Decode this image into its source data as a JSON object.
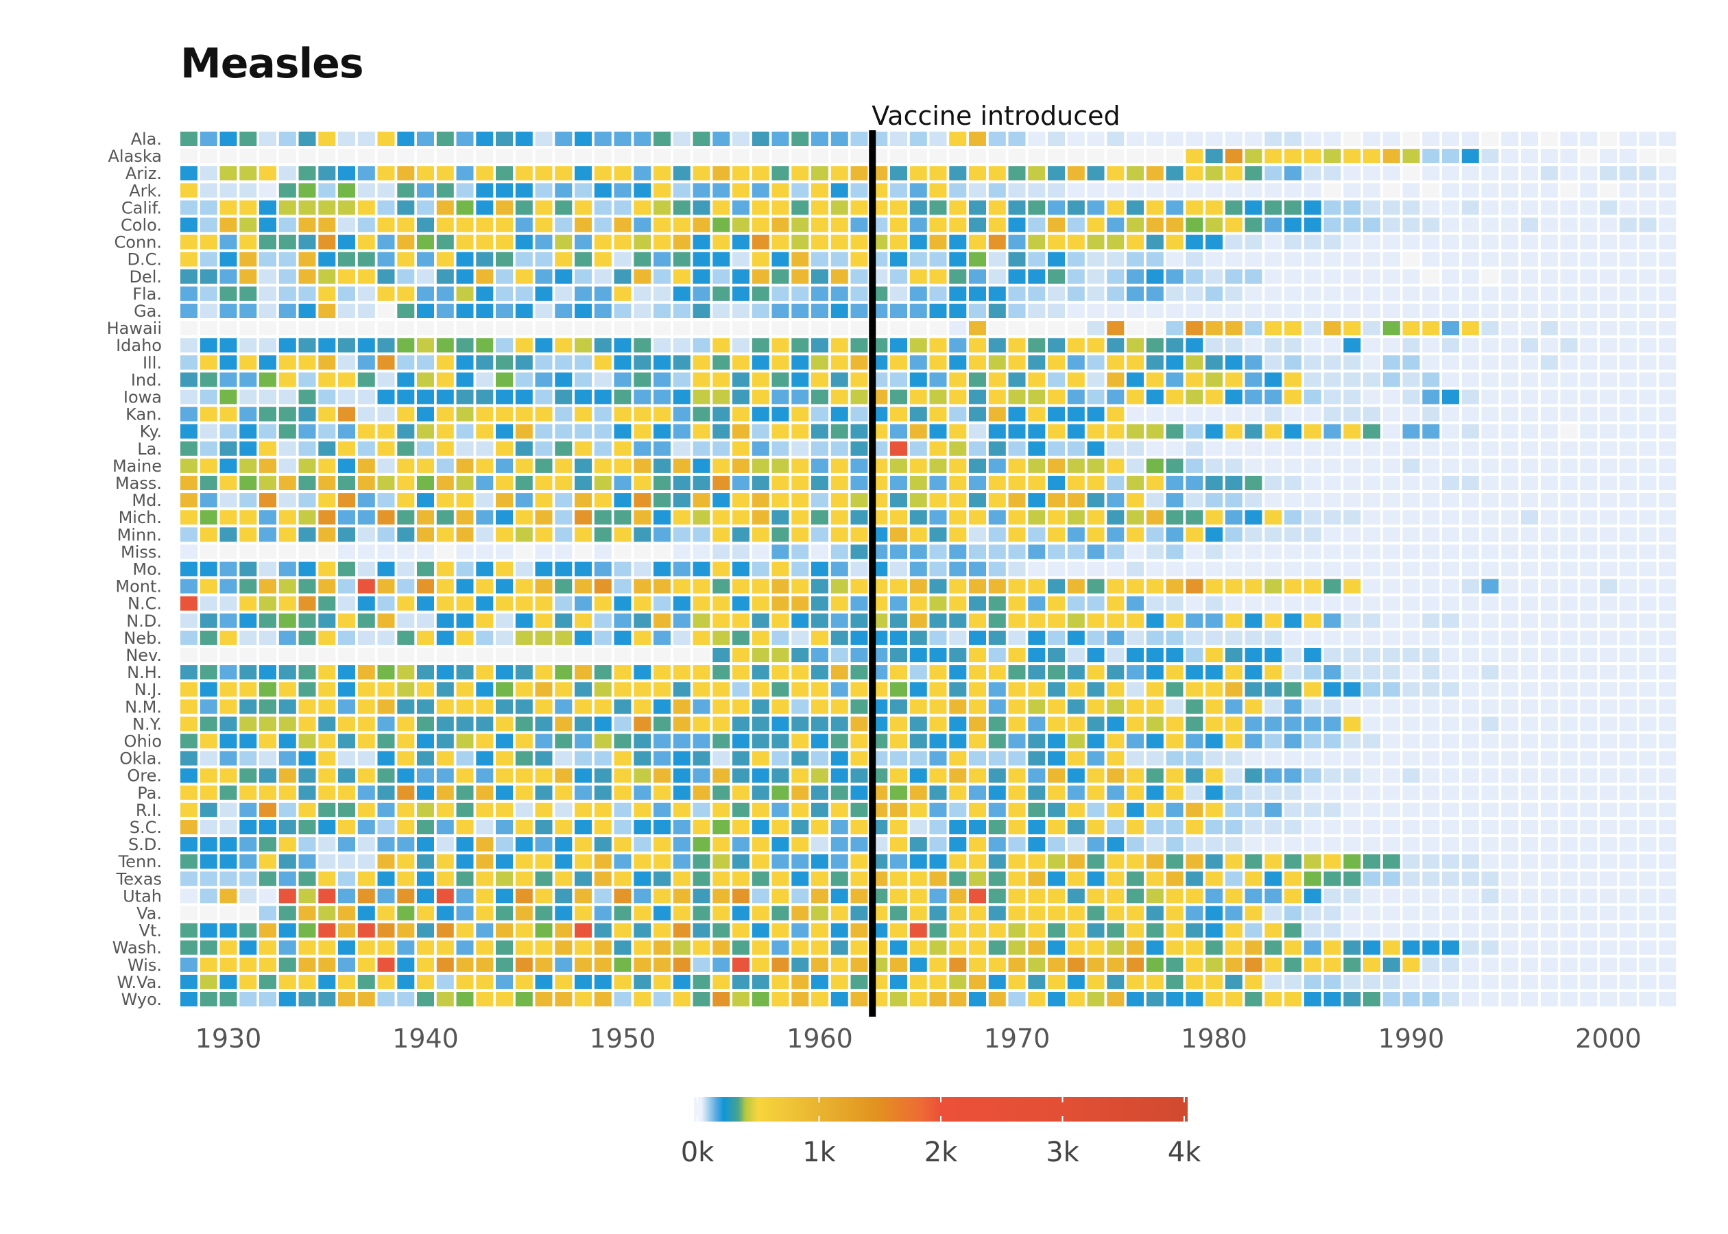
{
  "chart_data": {
    "type": "heatmap",
    "title": "Measles",
    "xlabel": "",
    "ylabel": "",
    "years": {
      "start": 1928,
      "end": 2003
    },
    "x_ticks": [
      "1930",
      "1940",
      "1950",
      "1960",
      "1970",
      "1980",
      "1990",
      "2000"
    ],
    "x_tick_values": [
      1930,
      1940,
      1950,
      1960,
      1970,
      1980,
      1990,
      2000
    ],
    "annotation": {
      "label": "Vaccine introduced",
      "year": 1963
    },
    "legend": {
      "position": "bottom-center",
      "ticks": [
        "0k",
        "1k",
        "2k",
        "3k",
        "4k"
      ],
      "tick_values": [
        0,
        1000,
        2000,
        3000,
        4000
      ],
      "range": [
        0,
        4000
      ]
    },
    "bins": {
      "0": {
        "cases": 0,
        "color": "#f5f5f5"
      },
      "1": {
        "cases": 10,
        "color": "#e4edf9"
      },
      "2": {
        "cases": 60,
        "color": "#cfe3f5"
      },
      "3": {
        "cases": 130,
        "color": "#a8d2f0"
      },
      "4": {
        "cases": 220,
        "color": "#5babe0"
      },
      "5": {
        "cases": 320,
        "color": "#2098d8"
      },
      "6": {
        "cases": 400,
        "color": "#3e9bba"
      },
      "7": {
        "cases": 480,
        "color": "#4fa48e"
      },
      "8": {
        "cases": 560,
        "color": "#73b74a"
      },
      "9": {
        "cases": 650,
        "color": "#c6cb44"
      },
      "a": {
        "cases": 850,
        "color": "#f7d23c"
      },
      "b": {
        "cases": 1150,
        "color": "#edb831"
      },
      "c": {
        "cases": 1500,
        "color": "#e3952a"
      },
      "d": {
        "cases": 2200,
        "color": "#e8553a"
      }
    },
    "states": [
      {
        "name": "Ala.",
        "row": "7457236a22a5474565245444727426474433232ab331211211111112211011011101101101"
      },
      {
        "name": "Alaska",
        "row": "000000000000000000000000000000000000000000000000000a6c9aaa9aab9335211110110000011101100000100001100110"
      },
      {
        "name": "Ariz.",
        "row": "5299a27654abaa4a7aaa5aa4a6abaa7a9abb6aa6aa796b6a9b6a9a734221110111111211222111111111111111101"
      },
      {
        "name": "Ark.",
        "row": "a22217838227473555343545a344a4a3a53a34a32322211111111111110110101111110101111"
      },
      {
        "name": "Calif.",
        "row": "33aa59999a363b85b7a7a33a976a4aa7a9aaa67a6a67464a6a4aa75775332221121111112111"
      },
      {
        "name": "Colo.",
        "row": "53b953bb23aa6aaaa4a3b3b4aab89ab9aa43a4aa6a53b3a49bb89a7455333222111121111221"
      },
      {
        "name": "Conn.",
        "row": "aa4a776c5a4b87aaa5494aa9ab5a5ca9aaa9a5b5ac49aa99a6a552212221111111111111111"
      },
      {
        "name": "D.C.",
        "row": "a35b33b5774a4a56733a7a2747552a5b33a35335826353223312111111111101111111"
      },
      {
        "name": "Del.",
        "row": "664b23b9aa63265b3a45326b3a535b7b6b323aa7425573234543233111111110110"
      },
      {
        "name": "Fla.",
        "row": "4377233a32aa4495335244a2254757334437243555332323442232111111111111111"
      },
      {
        "name": "Ga.",
        "row": "4244245b2207545545245432336223444544445536322111111111111111111111111"
      },
      {
        "name": "Hawaii",
        "row": "0000000000000000000000000000000000000001b000002c003cbb3aa2ba28aa4a2112111111111111111"
      },
      {
        "name": "Idaho",
        "row": "25522565656898783a5a9657223a27a76a7759a4a6a76aa69765221221151121211121211111"
      },
      {
        "name": "Ill.",
        "row": "3a5a5aab24c33a5676333a5656a7a5a59ab5a4a5a9a6a43aa6596542322213311111121111111"
      },
      {
        "name": "Ind.",
        "row": "67448a3aa7259a528345324743aa6a75a6a3354a7a6a3a2b5a4a9a45a2222323111111111111"
      },
      {
        "name": "Iowa",
        "row": "23822273225555665536557445996a447a9b7a9a6a99a434a5a9a544a3221124521111111111"
      },
      {
        "name": "Kan.",
        "row": "4aa4776ac22a5a9aaaa3a3aaa476a55a3535a6a36b5a555a1111111211222112111111111"
      },
      {
        "name": "Ky.",
        "row": "523537434aa69a3a5b33335a54a6b3aa676a4b5a2555a5aa99735a6a5a4a71441211110111111"
      },
      {
        "name": "La.",
        "row": "7365a236a3a73a22a637a3a44233a4323363d3a9363533522112111111111111111"
      },
      {
        "name": "Maine",
        "row": "9a59b29a5b2aa3ba4a7a6aab6b5ab99a4a4a9a9a64a9b99a2873221111111121111111"
      },
      {
        "name": "Mass.",
        "row": "b7a89b7b7b9a8b94a7aa694a766c46aa6a4a494a4aaa5aa39a44667221111111221111"
      },
      {
        "name": "Md.",
        "row": "b423c23ac43a5aa2b4a3ba5c76b5abaa3a9a69aa6ab5bb64a2423321111111111111"
      },
      {
        "name": "Mich.",
        "row": "a8aa4a9c44c7b7b45ab3c77b5a9aab6a7a6aa64aa4a9a9a69b77a45a3222111111112111111"
      },
      {
        "name": "Minn.",
        "row": "3a6a4a6b6236bab2a9a3a7a6433a6a7a3aa5ba6a23a3a4a4a34a53222211111111111111111"
      },
      {
        "name": "Miss.",
        "row": "1000000011111011101101000112214313644434333433431231211111111111111111111"
      },
      {
        "name": "Mo.",
        "row": "5546245a72527a35a2555432545a53a35425243443211111211111111111111111111"
      },
      {
        "name": "Mont.",
        "row": "4a47b97b3db3ca5a5ab7bc3bbaa7aaba69aaab6abbaa6b7aaabcaaa9aa7a11111241111121111"
      },
      {
        "name": "N.C.",
        "row": "d22a9ac7253a5aa5aaa34a5a35aa5abb6a4a4a9a67a4a33a42212111111111111111"
      },
      {
        "name": "N.D.",
        "row": "26457876a7b2255a25a6a346b49aa6a564696b66a7aaa9aaa5a44a5a5a422112211111"
      },
      {
        "name": "Neb.",
        "row": "37a2247a3227a5a32999535a42a97a32a6555632562535342332222211111111111111111"
      },
      {
        "name": "Nev.",
        "row": "0000000000000000000000000006a99643446556a3a562525553a6552522222211111111111"
      },
      {
        "name": "N.H.",
        "row": "6746567a5b89656a56a8b7a5aaa7a6aa6b74a3a5aa7676a645a55a5a23422212112111111111"
      },
      {
        "name": "N.J.",
        "row": "a5aa8a7a5aa9a6a58aba69aaa6aa3a7aa4aa85a6a4aa6a6a2a7aab667a5533222111111111111"
      },
      {
        "name": "N.M.",
        "row": "a4a676aa4ab66aaa66a4aa6a5b4aa6a3aa756aaba4a9a6a9aa27a4a2422111111111111111"
      },
      {
        "name": "N.Y.",
        "row": "a76999a6aa4a7666a76b653c7baa665666b5a6a5b7a4aa65a9a7aa44444a1111112111111111"
      },
      {
        "name": "Ohio",
        "row": "7a55a59a6a7a569a5a4749764447566a57a7a655a746595a45a45a4343322111111111111111"
      },
      {
        "name": "Okla.",
        "row": "6243245a225a6a35a76233a645626a3635a3334a33365a4a2233221111111111111111"
      },
      {
        "name": "Ore.",
        "row": "5aa76b6a6a7544a4aaab56a9b54b656a9567a5aba6a4b5aba7a6a2644322112111111111111"
      },
      {
        "name": "Pa.",
        "row": "aa7aaa6aa46c5b7b5a6a46a4a5b7a68b675b8b6a45a6a4a4a5a2532221111111111111111"
      },
      {
        "name": "R.I.",
        "row": "a624c3a77a4a9a7aa2a2aa3a4a3a7a4a6a7bba43a4a76a3a5a4ba33422211111111111111"
      },
      {
        "name": "S.C.",
        "row": "b2255675a43a74a24a6a5a3554a8a5a6a4a6a23557a5a6a3a33a3322211111111111111"
      },
      {
        "name": "S.D.",
        "row": "55547a324244525b3545a6a3a48a4a5a2442a635a4353245323222111111111111111111"
      },
      {
        "name": "Tenn.",
        "row": "7554a64222ba6a5b5aa5ab4aa4796a4454a6455aa6aa9b7aab7b6a7a79a877222211111111"
      },
      {
        "name": "Texas",
        "row": "3333747a3a5a5a7a9a7a6ba56a7aa7a5a7abaab797ab5a5a7ab6a3a5a8773322222111111111"
      },
      {
        "name": "Utah",
        "row": "13b21d9d4c4c5d4a5ca6b3c4ab6bc3a3b5b7aa4bd7aaa6aa79aa4a44a5221111112111111111"
      },
      {
        "name": "Va.",
        "row": "000037b9b5a8a54a7b75a47a5a7a5a7b9a6a7a6aa6aaaa7aa6a454a23221111111111111111"
      },
      {
        "name": "Vt.",
        "row": "7557b58dbdcb6ca4ba8bd6a6ac67a5a4a5b5ad7aaa9a7a67a7a65a3a7221111111111111111"
      },
      {
        "name": "Wash.",
        "row": "77a5a4aa5aa4aa4a7aabab6ab9ab7a4aa6aa5a9aa79b5aa9b5aa7ab7a4a65a5552211111111111"
      },
      {
        "name": "Wis.",
        "row": "4aaaa7bb4ad5acbb7cb4bb8bbc34dac6bab9b5acaab9bcbbc87a9bca7aa7a6a2211111111111"
      },
      {
        "name": "W.Va.",
        "row": "595a7aa5a7a5a3aa4a5a55a6a57a66ab5a7a5aa9b5a6a5a6aa7aa6a2233222111111111111"
      },
      {
        "name": "Wyo.",
        "row": "57733566bb33798aa8bbab3a3a7c98aba5ba9abb5b3a5a9b5655aa7aa55673332111111111111"
      }
    ]
  }
}
